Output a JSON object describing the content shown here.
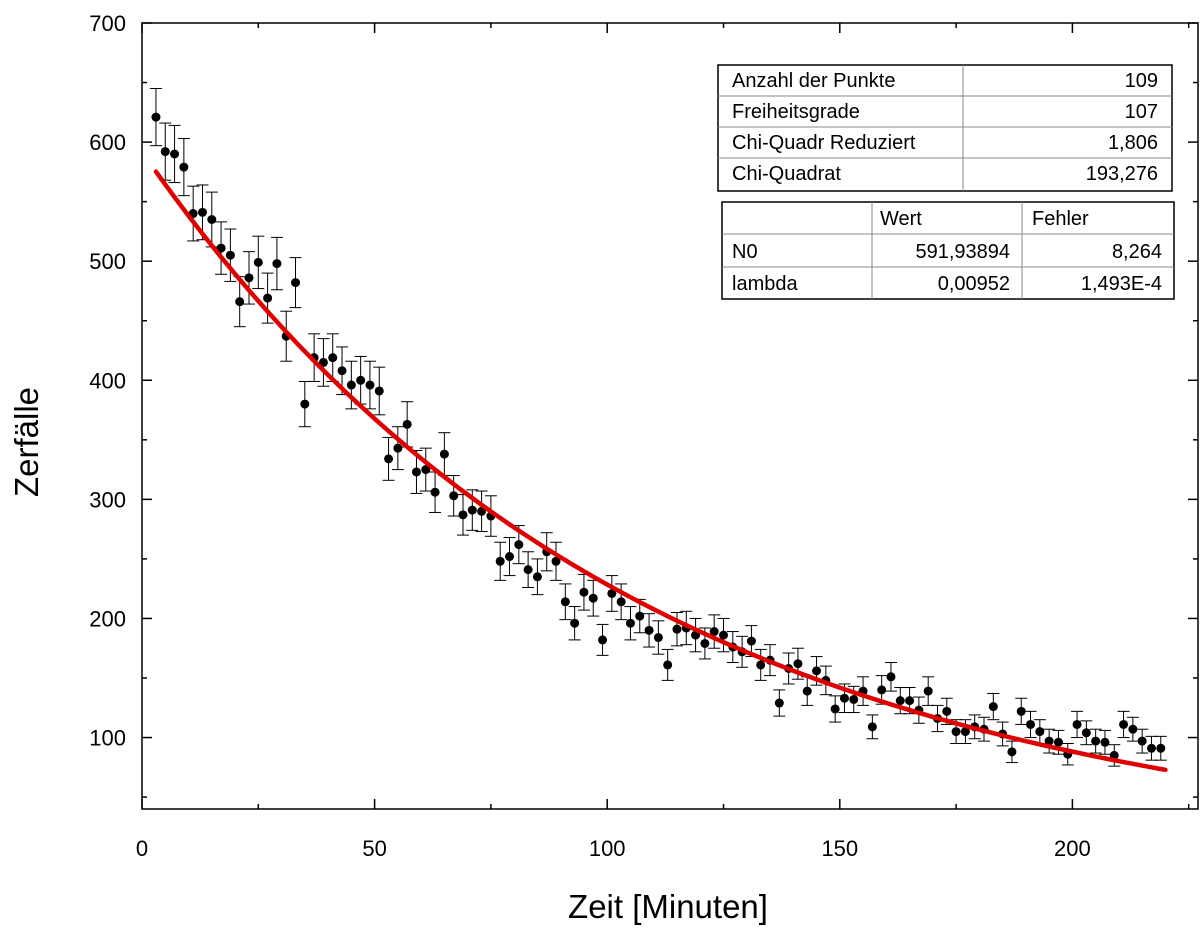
{
  "chart_data": {
    "type": "scatter",
    "title": "",
    "xlabel": "Zeit [Minuten]",
    "ylabel": "Zerfälle",
    "xlim": [
      0,
      227
    ],
    "ylim": [
      40,
      700
    ],
    "x_ticks": [
      0,
      50,
      100,
      150,
      200
    ],
    "y_ticks": [
      100,
      200,
      300,
      400,
      500,
      600,
      700
    ],
    "grid": false,
    "colors": {
      "points": "#000000",
      "fit": "#e00000",
      "axes": "#000000"
    },
    "series": [
      {
        "kind": "measurement-with-error-bars",
        "x": [
          3,
          5,
          7,
          9,
          11,
          13,
          15,
          17,
          19,
          21,
          23,
          25,
          27,
          29,
          31,
          33,
          35,
          37,
          39,
          41,
          43,
          45,
          47,
          49,
          51,
          53,
          55,
          57,
          59,
          61,
          63,
          65,
          67,
          69,
          71,
          73,
          75,
          77,
          79,
          81,
          83,
          85,
          87,
          89,
          91,
          93,
          95,
          97,
          99,
          101,
          103,
          105,
          107,
          109,
          111,
          113,
          115,
          117,
          119,
          121,
          123,
          125,
          127,
          129,
          131,
          133,
          135,
          137,
          139,
          141,
          143,
          145,
          147,
          149,
          151,
          153,
          155,
          157,
          159,
          161,
          163,
          165,
          167,
          169,
          171,
          173,
          175,
          177,
          179,
          181,
          183,
          185,
          187,
          189,
          191,
          193,
          195,
          197,
          199,
          201,
          203,
          205,
          207,
          209,
          211,
          213,
          215,
          217,
          219
        ],
        "y": [
          621,
          592,
          590,
          579,
          540,
          541,
          535,
          511,
          505,
          466,
          486,
          499,
          469,
          498,
          437,
          482,
          380,
          419,
          415,
          419,
          408,
          396,
          400,
          396,
          391,
          334,
          343,
          363,
          323,
          325,
          306,
          338,
          303,
          287,
          291,
          290,
          286,
          248,
          252,
          262,
          241,
          235,
          256,
          248,
          214,
          196,
          222,
          217,
          182,
          221,
          214,
          196,
          202,
          190,
          184,
          161,
          191,
          192,
          186,
          179,
          189,
          186,
          176,
          172,
          181,
          161,
          165,
          129,
          158,
          162,
          139,
          156,
          148,
          124,
          133,
          132,
          139,
          109,
          140,
          151,
          131,
          131,
          123,
          139,
          116,
          122,
          105,
          105,
          109,
          107,
          126,
          103,
          88,
          122,
          111,
          105,
          97,
          96,
          86,
          111,
          104,
          97,
          96,
          85,
          111,
          107,
          97,
          91,
          91
        ],
        "y_error": [
          24,
          24,
          24,
          24,
          23,
          23,
          23,
          22,
          22,
          21,
          22,
          22,
          21,
          22,
          21,
          21,
          19,
          20,
          20,
          20,
          20,
          20,
          20,
          20,
          20,
          18,
          18,
          19,
          18,
          18,
          17,
          18,
          17,
          17,
          17,
          17,
          17,
          16,
          16,
          16,
          15,
          15,
          16,
          16,
          15,
          14,
          15,
          15,
          13,
          15,
          15,
          14,
          14,
          14,
          14,
          13,
          14,
          14,
          14,
          13,
          14,
          14,
          13,
          13,
          13,
          13,
          13,
          11,
          13,
          13,
          12,
          12,
          12,
          11,
          12,
          11,
          12,
          10,
          12,
          12,
          11,
          11,
          11,
          12,
          11,
          11,
          10,
          10,
          10,
          10,
          11,
          10,
          9,
          11,
          11,
          10,
          10,
          10,
          9,
          11,
          10,
          10,
          10,
          9,
          11,
          10,
          10,
          10,
          10
        ]
      },
      {
        "kind": "fit-curve",
        "model": "N0 * exp(-lambda * t)",
        "N0": 591.93894,
        "lambda": 0.00952,
        "x_range": [
          3,
          220
        ]
      }
    ]
  },
  "fit_stats_table": {
    "rows": [
      {
        "label": "Anzahl der Punkte",
        "value": "109"
      },
      {
        "label": "Freiheitsgrade",
        "value": "107"
      },
      {
        "label": "Chi-Quadr Reduziert",
        "value": "1,806"
      },
      {
        "label": "Chi-Quadrat",
        "value": "193,276"
      }
    ]
  },
  "param_table": {
    "headers": [
      "",
      "Wert",
      "Fehler"
    ],
    "rows": [
      {
        "name": "N0",
        "wert": "591,93894",
        "fehler": "8,264"
      },
      {
        "name": "lambda",
        "wert": "0,00952",
        "fehler": "1,493E-4"
      }
    ]
  }
}
